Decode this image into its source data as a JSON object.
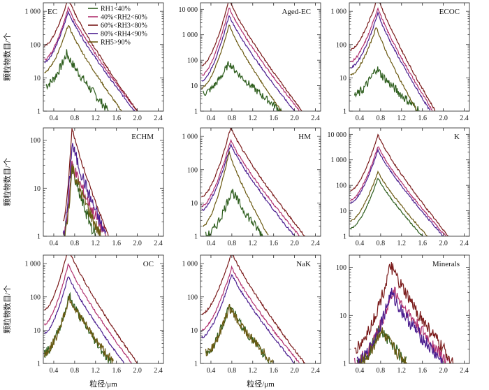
{
  "figure": {
    "shared_xlabel": "粒径/μm",
    "shared_ylabel": "颗粒物数目/个",
    "legend": {
      "placement": "top-left (inside EC panel)",
      "entries": [
        "RH1<40%",
        "40%<RH2<60%",
        "60%<RH3<80%",
        "80%<RH4<90%",
        "RH5>90%"
      ]
    }
  },
  "chart_data": [
    {
      "type": "line",
      "title": "EC",
      "xlim": [
        0.2,
        2.5
      ],
      "yscale": "log",
      "ylim": [
        1,
        1800
      ],
      "xticks": [
        "0.4",
        "0.8",
        "1.2",
        "1.6",
        "2.0",
        "2.4"
      ],
      "yticks": [
        "1",
        "10",
        "100",
        "1 000"
      ],
      "series": [
        {
          "name": "RH1<40%",
          "color": "#2e5e1e",
          "peak_x": 0.65,
          "peak_y": 55,
          "x_start": 0.25,
          "x_end": 1.45,
          "y_start": 6
        },
        {
          "name": "40%<RH2<60%",
          "color": "#b0306e",
          "peak_x": 0.68,
          "peak_y": 1350,
          "x_start": 0.22,
          "x_end": 2.0,
          "y_start": 35
        },
        {
          "name": "60%<RH3<80%",
          "color": "#7a1a1a",
          "peak_x": 0.68,
          "peak_y": 2500,
          "x_start": 0.22,
          "x_end": 2.0,
          "y_start": 90
        },
        {
          "name": "80%<RH4<90%",
          "color": "#4b1d8f",
          "peak_x": 0.68,
          "peak_y": 1000,
          "x_start": 0.22,
          "x_end": 1.95,
          "y_start": 30
        },
        {
          "name": "RH5>90%",
          "color": "#6b5a12",
          "peak_x": 0.68,
          "peak_y": 400,
          "x_start": 0.22,
          "x_end": 1.7,
          "y_start": 15
        }
      ]
    },
    {
      "type": "line",
      "title": "Aged-EC",
      "xlim": [
        0.2,
        2.5
      ],
      "yscale": "log",
      "ylim": [
        1,
        18000
      ],
      "xticks": [
        "0.4",
        "0.8",
        "1.2",
        "1.6",
        "2.0",
        "2.4"
      ],
      "yticks": [
        "1",
        "10",
        "100",
        "1 000",
        "10 000"
      ],
      "series": [
        {
          "name": "RH1<40%",
          "color": "#2e5e1e",
          "peak_x": 0.75,
          "peak_y": 80,
          "x_start": 0.25,
          "x_end": 1.75,
          "y_start": 5
        },
        {
          "name": "40%<RH2<60%",
          "color": "#b0306e",
          "peak_x": 0.75,
          "peak_y": 12000,
          "x_start": 0.22,
          "x_end": 2.1,
          "y_start": 25
        },
        {
          "name": "60%<RH3<80%",
          "color": "#7a1a1a",
          "peak_x": 0.75,
          "peak_y": 25000,
          "x_start": 0.22,
          "x_end": 2.15,
          "y_start": 60
        },
        {
          "name": "80%<RH4<90%",
          "color": "#4b1d8f",
          "peak_x": 0.75,
          "peak_y": 6000,
          "x_start": 0.22,
          "x_end": 2.0,
          "y_start": 15
        },
        {
          "name": "RH5>90%",
          "color": "#6b5a12",
          "peak_x": 0.75,
          "peak_y": 2500,
          "x_start": 0.22,
          "x_end": 1.75,
          "y_start": 8
        }
      ]
    },
    {
      "type": "line",
      "title": "ECOC",
      "xlim": [
        0.2,
        2.5
      ],
      "yscale": "log",
      "ylim": [
        1,
        1800
      ],
      "xticks": [
        "0.4",
        "0.8",
        "1.2",
        "1.6",
        "2.0",
        "2.4"
      ],
      "yticks": [
        "1",
        "10",
        "100",
        "1 000"
      ],
      "series": [
        {
          "name": "RH1<40%",
          "color": "#2e5e1e",
          "peak_x": 0.72,
          "peak_y": 20,
          "x_start": 0.3,
          "x_end": 1.55,
          "y_start": 3
        },
        {
          "name": "40%<RH2<60%",
          "color": "#b0306e",
          "peak_x": 0.75,
          "peak_y": 1300,
          "x_start": 0.22,
          "x_end": 1.8,
          "y_start": 30
        },
        {
          "name": "60%<RH3<80%",
          "color": "#7a1a1a",
          "peak_x": 0.75,
          "peak_y": 2800,
          "x_start": 0.22,
          "x_end": 1.85,
          "y_start": 70
        },
        {
          "name": "80%<RH4<90%",
          "color": "#4b1d8f",
          "peak_x": 0.75,
          "peak_y": 900,
          "x_start": 0.22,
          "x_end": 1.75,
          "y_start": 20
        },
        {
          "name": "RH5>90%",
          "color": "#6b5a12",
          "peak_x": 0.72,
          "peak_y": 350,
          "x_start": 0.22,
          "x_end": 1.5,
          "y_start": 12
        }
      ]
    },
    {
      "type": "line",
      "title": "ECHM",
      "xlim": [
        0.2,
        2.5
      ],
      "yscale": "log",
      "ylim": [
        1,
        180
      ],
      "xticks": [
        "0.4",
        "0.8",
        "1.2",
        "1.6",
        "2.0",
        "2.4"
      ],
      "yticks": [
        "1",
        "10",
        "100"
      ],
      "series": [
        {
          "name": "RH1<40%",
          "color": "#2e5e1e",
          "peak_x": 0.75,
          "peak_y": 25,
          "x_start": 0.58,
          "x_end": 1.2,
          "y_start": 1
        },
        {
          "name": "40%<RH2<60%",
          "color": "#b0306e",
          "peak_x": 0.75,
          "peak_y": 35,
          "x_start": 0.58,
          "x_end": 1.4,
          "y_start": 1
        },
        {
          "name": "60%<RH3<80%",
          "color": "#7a1a1a",
          "peak_x": 0.75,
          "peak_y": 190,
          "x_start": 0.58,
          "x_end": 1.45,
          "y_start": 2
        },
        {
          "name": "80%<RH4<90%",
          "color": "#4b1d8f",
          "peak_x": 0.75,
          "peak_y": 90,
          "x_start": 0.58,
          "x_end": 1.4,
          "y_start": 1
        },
        {
          "name": "RH5>90%",
          "color": "#6b5a12",
          "peak_x": 0.75,
          "peak_y": 30,
          "x_start": 0.6,
          "x_end": 1.3,
          "y_start": 1
        }
      ]
    },
    {
      "type": "line",
      "title": "HM",
      "xlim": [
        0.2,
        2.5
      ],
      "yscale": "log",
      "ylim": [
        1,
        1800
      ],
      "xticks": [
        "0.4",
        "0.8",
        "1.2",
        "1.6",
        "2.0",
        "2.4"
      ],
      "yticks": [
        "1",
        "10",
        "100",
        "1 000"
      ],
      "series": [
        {
          "name": "RH1<40%",
          "color": "#2e5e1e",
          "peak_x": 0.8,
          "peak_y": 25,
          "x_start": 0.3,
          "x_end": 1.4,
          "y_start": 1
        },
        {
          "name": "40%<RH2<60%",
          "color": "#b0306e",
          "peak_x": 0.78,
          "peak_y": 800,
          "x_start": 0.22,
          "x_end": 2.1,
          "y_start": 8
        },
        {
          "name": "60%<RH3<80%",
          "color": "#7a1a1a",
          "peak_x": 0.78,
          "peak_y": 1900,
          "x_start": 0.22,
          "x_end": 2.2,
          "y_start": 15
        },
        {
          "name": "80%<RH4<90%",
          "color": "#4b1d8f",
          "peak_x": 0.78,
          "peak_y": 600,
          "x_start": 0.22,
          "x_end": 2.0,
          "y_start": 6
        },
        {
          "name": "RH5>90%",
          "color": "#6b5a12",
          "peak_x": 0.75,
          "peak_y": 350,
          "x_start": 0.25,
          "x_end": 1.5,
          "y_start": 2
        }
      ]
    },
    {
      "type": "line",
      "title": "K",
      "xlim": [
        0.2,
        2.5
      ],
      "yscale": "log",
      "ylim": [
        1,
        18000
      ],
      "xticks": [
        "0.4",
        "0.8",
        "1.2",
        "1.6",
        "2.0",
        "2.4"
      ],
      "yticks": [
        "1",
        "10",
        "100",
        "1 000",
        "10 000"
      ],
      "series": [
        {
          "name": "RH1<40%",
          "color": "#2e5e1e",
          "peak_x": 0.75,
          "peak_y": 200,
          "x_start": 0.22,
          "x_end": 1.6,
          "y_start": 2
        },
        {
          "name": "40%<RH2<60%",
          "color": "#b0306e",
          "peak_x": 0.75,
          "peak_y": 3500,
          "x_start": 0.22,
          "x_end": 2.05,
          "y_start": 25
        },
        {
          "name": "60%<RH3<80%",
          "color": "#7a1a1a",
          "peak_x": 0.75,
          "peak_y": 10000,
          "x_start": 0.22,
          "x_end": 2.1,
          "y_start": 60
        },
        {
          "name": "80%<RH4<90%",
          "color": "#4b1d8f",
          "peak_x": 0.75,
          "peak_y": 2500,
          "x_start": 0.22,
          "x_end": 2.0,
          "y_start": 20
        },
        {
          "name": "RH5>90%",
          "color": "#6b5a12",
          "peak_x": 0.75,
          "peak_y": 350,
          "x_start": 0.22,
          "x_end": 1.7,
          "y_start": 4
        }
      ]
    },
    {
      "type": "line",
      "title": "OC",
      "xlim": [
        0.2,
        2.5
      ],
      "yscale": "log",
      "ylim": [
        1,
        1800
      ],
      "xticks": [
        "0.4",
        "0.8",
        "1.2",
        "1.6",
        "2.0",
        "2.4"
      ],
      "yticks": [
        "1",
        "10",
        "100",
        "1 000"
      ],
      "series": [
        {
          "name": "RH1<40%",
          "color": "#2e5e1e",
          "peak_x": 0.7,
          "peak_y": 110,
          "x_start": 0.22,
          "x_end": 1.5,
          "y_start": 2
        },
        {
          "name": "40%<RH2<60%",
          "color": "#b0306e",
          "peak_x": 0.68,
          "peak_y": 1000,
          "x_start": 0.22,
          "x_end": 1.9,
          "y_start": 15
        },
        {
          "name": "60%<RH3<80%",
          "color": "#7a1a1a",
          "peak_x": 0.68,
          "peak_y": 3000,
          "x_start": 0.22,
          "x_end": 2.0,
          "y_start": 40
        },
        {
          "name": "80%<RH4<90%",
          "color": "#4b1d8f",
          "peak_x": 0.68,
          "peak_y": 450,
          "x_start": 0.22,
          "x_end": 1.75,
          "y_start": 8
        },
        {
          "name": "RH5>90%",
          "color": "#6b5a12",
          "peak_x": 0.7,
          "peak_y": 100,
          "x_start": 0.22,
          "x_end": 1.55,
          "y_start": 2
        }
      ]
    },
    {
      "type": "line",
      "title": "NaK",
      "xlim": [
        0.2,
        2.5
      ],
      "yscale": "log",
      "ylim": [
        1,
        1800
      ],
      "xticks": [
        "0.4",
        "0.8",
        "1.2",
        "1.6",
        "2.0",
        "2.4"
      ],
      "yticks": [
        "1",
        "10",
        "100",
        "1 000"
      ],
      "series": [
        {
          "name": "RH1<40%",
          "color": "#2e5e1e",
          "peak_x": 0.75,
          "peak_y": 60,
          "x_start": 0.3,
          "x_end": 1.55,
          "y_start": 2
        },
        {
          "name": "40%<RH2<60%",
          "color": "#b0306e",
          "peak_x": 0.8,
          "peak_y": 800,
          "x_start": 0.22,
          "x_end": 2.1,
          "y_start": 10
        },
        {
          "name": "60%<RH3<80%",
          "color": "#7a1a1a",
          "peak_x": 0.8,
          "peak_y": 2300,
          "x_start": 0.22,
          "x_end": 2.2,
          "y_start": 30
        },
        {
          "name": "80%<RH4<90%",
          "color": "#4b1d8f",
          "peak_x": 0.8,
          "peak_y": 500,
          "x_start": 0.22,
          "x_end": 2.0,
          "y_start": 6
        },
        {
          "name": "RH5>90%",
          "color": "#6b5a12",
          "peak_x": 0.75,
          "peak_y": 50,
          "x_start": 0.3,
          "x_end": 1.6,
          "y_start": 2
        }
      ]
    },
    {
      "type": "line",
      "title": "Minerals",
      "xlim": [
        0.2,
        2.5
      ],
      "yscale": "log",
      "ylim": [
        1,
        180
      ],
      "xticks": [
        "0.4",
        "0.8",
        "1.2",
        "1.6",
        "2.0",
        "2.4"
      ],
      "yticks": [
        "1",
        "10",
        "100"
      ],
      "series": [
        {
          "name": "RH1<40%",
          "color": "#2e5e1e",
          "peak_x": 0.8,
          "peak_y": 6,
          "x_start": 0.35,
          "x_end": 1.3,
          "y_start": 1
        },
        {
          "name": "40%<RH2<60%",
          "color": "#b0306e",
          "peak_x": 1.05,
          "peak_y": 35,
          "x_start": 0.3,
          "x_end": 2.1,
          "y_start": 1
        },
        {
          "name": "60%<RH3<80%",
          "color": "#7a1a1a",
          "peak_x": 1.0,
          "peak_y": 110,
          "x_start": 0.3,
          "x_end": 2.2,
          "y_start": 2
        },
        {
          "name": "80%<RH4<90%",
          "color": "#4b1d8f",
          "peak_x": 1.0,
          "peak_y": 30,
          "x_start": 0.35,
          "x_end": 2.0,
          "y_start": 1
        },
        {
          "name": "RH5>90%",
          "color": "#6b5a12",
          "peak_x": 0.8,
          "peak_y": 5,
          "x_start": 0.4,
          "x_end": 1.3,
          "y_start": 1
        }
      ]
    }
  ]
}
